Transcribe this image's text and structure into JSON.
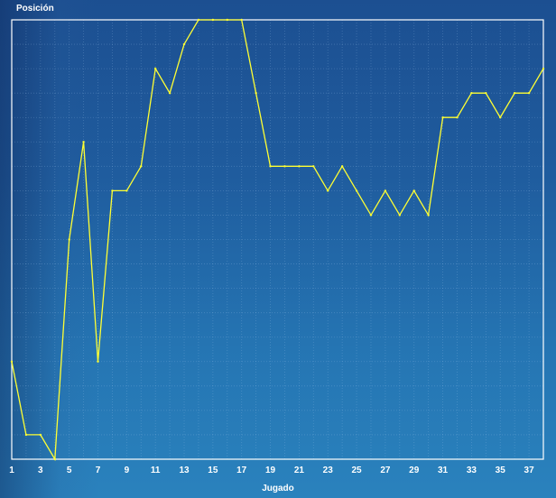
{
  "chart_data": {
    "type": "line",
    "ylabel": "Posición",
    "xlabel": "Jugado",
    "x_ticks": [
      "1",
      "3",
      "5",
      "7",
      "9",
      "11",
      "13",
      "15",
      "17",
      "19",
      "21",
      "23",
      "25",
      "27",
      "29",
      "31",
      "33",
      "35",
      "37"
    ],
    "x": [
      1,
      2,
      3,
      4,
      5,
      6,
      7,
      8,
      9,
      10,
      11,
      12,
      13,
      14,
      15,
      16,
      17,
      18,
      19,
      20,
      21,
      22,
      23,
      24,
      25,
      26,
      27,
      28,
      29,
      30,
      31,
      32,
      33,
      34,
      35,
      36,
      37,
      38
    ],
    "y": [
      10,
      13,
      13,
      14,
      5,
      1,
      10,
      3,
      3,
      2,
      -2,
      -1,
      -3,
      -4,
      -4,
      -4,
      -4,
      -1,
      2,
      2,
      2,
      2,
      3,
      2,
      3,
      4,
      3,
      4,
      3,
      4,
      0,
      0,
      -1,
      -1,
      0,
      -1,
      -1,
      -2
    ],
    "xlim": [
      1,
      38
    ],
    "ylim": [
      -4,
      14
    ],
    "y_reversed": true,
    "grid": true,
    "line_color": "#ffff33"
  }
}
